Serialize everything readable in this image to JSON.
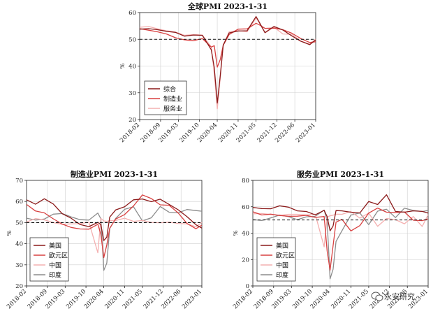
{
  "chart_data": [
    {
      "type": "line",
      "title": "全球PMI 2023-1-31",
      "ylabel": "%",
      "ylim": [
        20,
        60
      ],
      "yticks": [
        20,
        30,
        40,
        50,
        60
      ],
      "xticks": [
        "2018-02",
        "2018-09",
        "2019-03",
        "2019-10",
        "2020-04",
        "2020-11",
        "2021-05",
        "2021-12",
        "2022-06",
        "2023-01"
      ],
      "reference_line": 50,
      "legend_position": "lower-left",
      "x": [
        "2018-02",
        "2018-05",
        "2018-08",
        "2018-11",
        "2019-02",
        "2019-05",
        "2019-08",
        "2019-11",
        "2020-02",
        "2020-03",
        "2020-04",
        "2020-05",
        "2020-06",
        "2020-08",
        "2020-11",
        "2021-02",
        "2021-05",
        "2021-06",
        "2021-08",
        "2021-11",
        "2022-02",
        "2022-05",
        "2022-08",
        "2022-11",
        "2023-01"
      ],
      "series": [
        {
          "name": "综合",
          "color": "#8b1a1a",
          "values": [
            53.8,
            54.0,
            53.6,
            53.0,
            52.6,
            51.2,
            51.6,
            51.5,
            46.1,
            39.4,
            26.2,
            36.3,
            47.8,
            52.4,
            53.1,
            53.2,
            58.5,
            56.6,
            52.5,
            54.8,
            53.5,
            51.3,
            49.3,
            48.0,
            49.8
          ]
        },
        {
          "name": "制造业",
          "color": "#d84040",
          "values": [
            54.0,
            53.4,
            52.8,
            52.0,
            50.6,
            49.8,
            49.5,
            50.3,
            47.1,
            47.6,
            39.6,
            42.4,
            47.8,
            51.8,
            53.8,
            53.9,
            56.0,
            55.5,
            54.1,
            54.2,
            53.6,
            52.3,
            50.3,
            48.8,
            49.1
          ]
        },
        {
          "name": "服务业",
          "color": "#f4b0b0",
          "values": [
            54.5,
            54.8,
            53.9,
            53.2,
            52.7,
            51.5,
            51.8,
            51.6,
            47.1,
            37.1,
            24.0,
            35.1,
            48.0,
            52.8,
            53.3,
            52.8,
            58.0,
            56.4,
            52.4,
            54.6,
            52.0,
            51.9,
            49.3,
            48.2,
            50.1
          ]
        }
      ]
    },
    {
      "type": "line",
      "title": "制造业PMI 2023-1-31",
      "ylabel": "%",
      "ylim": [
        20,
        70
      ],
      "yticks": [
        20,
        30,
        40,
        50,
        60,
        70
      ],
      "xticks": [
        "2018-02",
        "2018-09",
        "2019-03",
        "2019-10",
        "2020-04",
        "2020-11",
        "2021-05",
        "2021-12",
        "2022-06",
        "2023-01"
      ],
      "reference_line": 50,
      "legend_position": "lower-left",
      "x": [
        "2018-02",
        "2018-05",
        "2018-08",
        "2018-11",
        "2019-02",
        "2019-05",
        "2019-08",
        "2019-11",
        "2020-02",
        "2020-03",
        "2020-04",
        "2020-05",
        "2020-06",
        "2020-08",
        "2020-11",
        "2021-02",
        "2021-05",
        "2021-08",
        "2021-11",
        "2022-02",
        "2022-05",
        "2022-08",
        "2022-11",
        "2023-01"
      ],
      "series": [
        {
          "name": "美国",
          "color": "#8b1a1a",
          "values": [
            60.8,
            58.7,
            61.3,
            58.8,
            54.2,
            52.1,
            49.1,
            48.1,
            50.1,
            49.1,
            41.5,
            43.1,
            52.6,
            56.0,
            57.5,
            60.8,
            61.2,
            59.9,
            61.1,
            58.6,
            56.1,
            52.8,
            49.0,
            47.4
          ]
        },
        {
          "name": "欧元区",
          "color": "#d84040",
          "values": [
            58.6,
            55.5,
            54.6,
            51.8,
            49.3,
            47.7,
            47.0,
            46.9,
            49.2,
            44.5,
            33.4,
            39.4,
            47.4,
            51.7,
            53.8,
            57.9,
            63.1,
            61.4,
            58.4,
            58.2,
            54.6,
            49.6,
            47.1,
            48.8
          ]
        },
        {
          "name": "中国",
          "color": "#f4b0b0",
          "values": [
            50.3,
            51.9,
            51.3,
            50.0,
            49.2,
            49.4,
            49.5,
            50.2,
            35.7,
            52.0,
            50.8,
            50.6,
            50.9,
            51.0,
            52.1,
            50.6,
            51.0,
            50.1,
            49.9,
            50.2,
            49.6,
            49.4,
            48.0,
            50.1
          ]
        },
        {
          "name": "印度",
          "color": "#8c8c8c",
          "values": [
            52.1,
            51.2,
            51.7,
            54.0,
            54.3,
            52.7,
            51.4,
            51.2,
            54.5,
            51.8,
            27.4,
            30.8,
            47.2,
            52.0,
            56.3,
            57.5,
            50.8,
            52.3,
            57.6,
            54.9,
            54.6,
            56.2,
            55.7,
            55.4
          ]
        }
      ]
    },
    {
      "type": "line",
      "title": "服务业PMI 2023-1-31",
      "ylabel": "%",
      "ylim": [
        0,
        80
      ],
      "yticks": [
        0,
        20,
        40,
        60,
        80
      ],
      "xticks": [
        "2018-02",
        "2018-09",
        "2019-03",
        "2019-10",
        "2020-04",
        "2020-11",
        "2021-05",
        "2021-12",
        "2022-06",
        "2023-01"
      ],
      "reference_line": 50,
      "legend_position": "lower-left",
      "x": [
        "2018-02",
        "2018-05",
        "2018-08",
        "2018-11",
        "2019-02",
        "2019-05",
        "2019-08",
        "2019-11",
        "2020-02",
        "2020-03",
        "2020-04",
        "2020-05",
        "2020-06",
        "2020-08",
        "2020-11",
        "2021-02",
        "2021-05",
        "2021-08",
        "2021-11",
        "2022-02",
        "2022-05",
        "2022-08",
        "2022-11",
        "2023-01"
      ],
      "series": [
        {
          "name": "美国",
          "color": "#8b1a1a",
          "values": [
            59.5,
            58.6,
            58.5,
            60.7,
            59.7,
            56.9,
            56.4,
            53.9,
            57.3,
            52.5,
            41.8,
            45.4,
            57.1,
            56.9,
            55.9,
            55.3,
            64.0,
            61.7,
            69.1,
            56.5,
            55.9,
            56.9,
            56.5,
            55.2
          ]
        },
        {
          "name": "欧元区",
          "color": "#d84040",
          "values": [
            56.2,
            53.8,
            54.4,
            53.4,
            52.8,
            52.9,
            53.5,
            51.9,
            52.6,
            26.4,
            12.0,
            30.5,
            48.3,
            50.5,
            41.7,
            45.7,
            55.2,
            59.0,
            55.9,
            55.5,
            56.1,
            49.8,
            49.5,
            50.8
          ]
        },
        {
          "name": "中国",
          "color": "#f4b0b0",
          "values": [
            54.6,
            54.9,
            54.2,
            53.4,
            54.3,
            54.3,
            53.8,
            54.4,
            29.6,
            52.3,
            53.2,
            53.6,
            54.4,
            54.3,
            56.4,
            51.4,
            55.2,
            45.2,
            51.1,
            50.3,
            47.1,
            52.6,
            45.1,
            54.0
          ]
        },
        {
          "name": "印度",
          "color": "#8c8c8c",
          "values": [
            50.3,
            49.6,
            51.5,
            53.7,
            52.5,
            50.2,
            52.4,
            52.7,
            57.5,
            49.3,
            5.4,
            12.6,
            33.7,
            41.8,
            53.7,
            55.3,
            46.4,
            56.7,
            58.1,
            51.8,
            58.9,
            57.2,
            56.4,
            57.2
          ]
        }
      ]
    }
  ],
  "watermark": {
    "text": "永安研究",
    "icon": "wechat-icon"
  }
}
